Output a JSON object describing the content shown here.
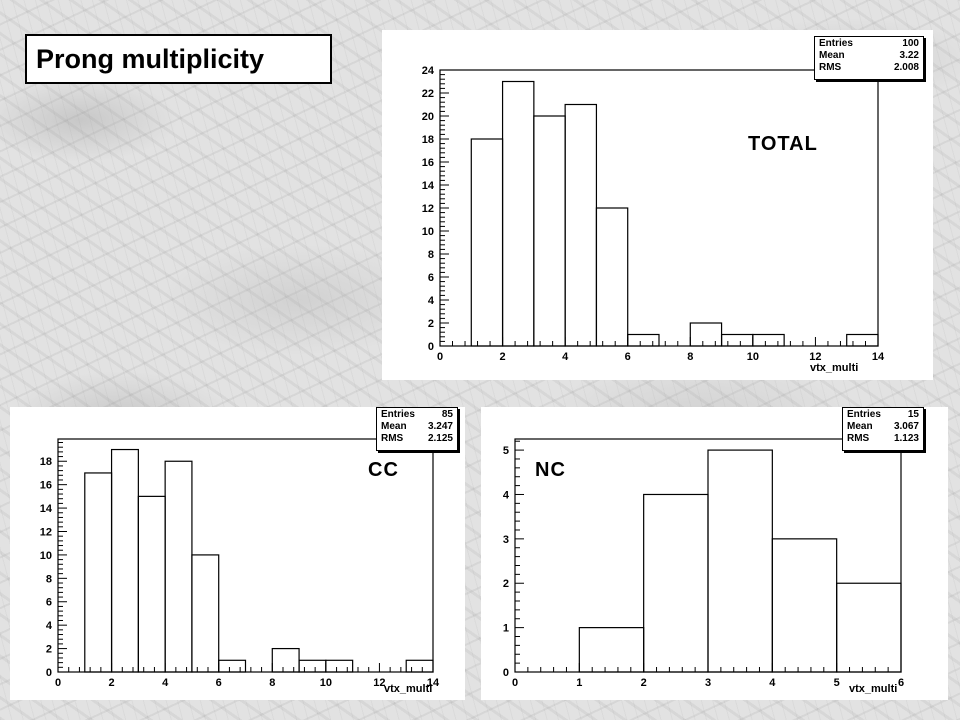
{
  "slide_title": "Prong multiplicity",
  "chart_data": [
    {
      "type": "bar",
      "label": "TOTAL",
      "xlabel": "vtx_multi",
      "xlim": [
        0,
        14
      ],
      "ylim": [
        0,
        24
      ],
      "xticks": [
        0,
        2,
        4,
        6,
        8,
        10,
        12,
        14
      ],
      "yticks": [
        0,
        2,
        4,
        6,
        8,
        10,
        12,
        14,
        16,
        18,
        20,
        22,
        24
      ],
      "bin_edges": [
        0,
        1,
        2,
        3,
        4,
        5,
        6,
        7,
        8,
        9,
        10,
        11,
        12,
        13,
        14
      ],
      "values": [
        0,
        18,
        23,
        20,
        21,
        12,
        1,
        0,
        2,
        1,
        1,
        0,
        0,
        1
      ],
      "stats": {
        "entries_label": "Entries",
        "entries": "100",
        "mean_label": "Mean",
        "mean": "3.22",
        "rms_label": "RMS",
        "rms": "2.008"
      }
    },
    {
      "type": "bar",
      "label": "CC",
      "xlabel": "vtx_multi",
      "xlim": [
        0,
        14
      ],
      "ylim": [
        0,
        19.9
      ],
      "xticks": [
        0,
        2,
        4,
        6,
        8,
        10,
        12,
        14
      ],
      "yticks": [
        0,
        2,
        4,
        6,
        8,
        10,
        12,
        14,
        16,
        18
      ],
      "bin_edges": [
        0,
        1,
        2,
        3,
        4,
        5,
        6,
        7,
        8,
        9,
        10,
        11,
        12,
        13,
        14
      ],
      "values": [
        0,
        17,
        19,
        15,
        18,
        10,
        1,
        0,
        2,
        1,
        1,
        0,
        0,
        1
      ],
      "stats": {
        "entries_label": "Entries",
        "entries": "85",
        "mean_label": "Mean",
        "mean": "3.247",
        "rms_label": "RMS",
        "rms": "2.125"
      }
    },
    {
      "type": "bar",
      "label": "NC",
      "xlabel": "vtx_multi",
      "xlim": [
        0,
        6
      ],
      "ylim": [
        0,
        5.25
      ],
      "xticks": [
        0,
        1,
        2,
        3,
        4,
        5,
        6
      ],
      "yticks": [
        0,
        1,
        2,
        3,
        4,
        5
      ],
      "bin_edges": [
        0,
        1,
        2,
        3,
        4,
        5,
        6
      ],
      "values": [
        0,
        1,
        4,
        5,
        3,
        2
      ],
      "stats": {
        "entries_label": "Entries",
        "entries": "15",
        "mean_label": "Mean",
        "mean": "3.067",
        "rms_label": "RMS",
        "rms": "1.123"
      }
    }
  ]
}
